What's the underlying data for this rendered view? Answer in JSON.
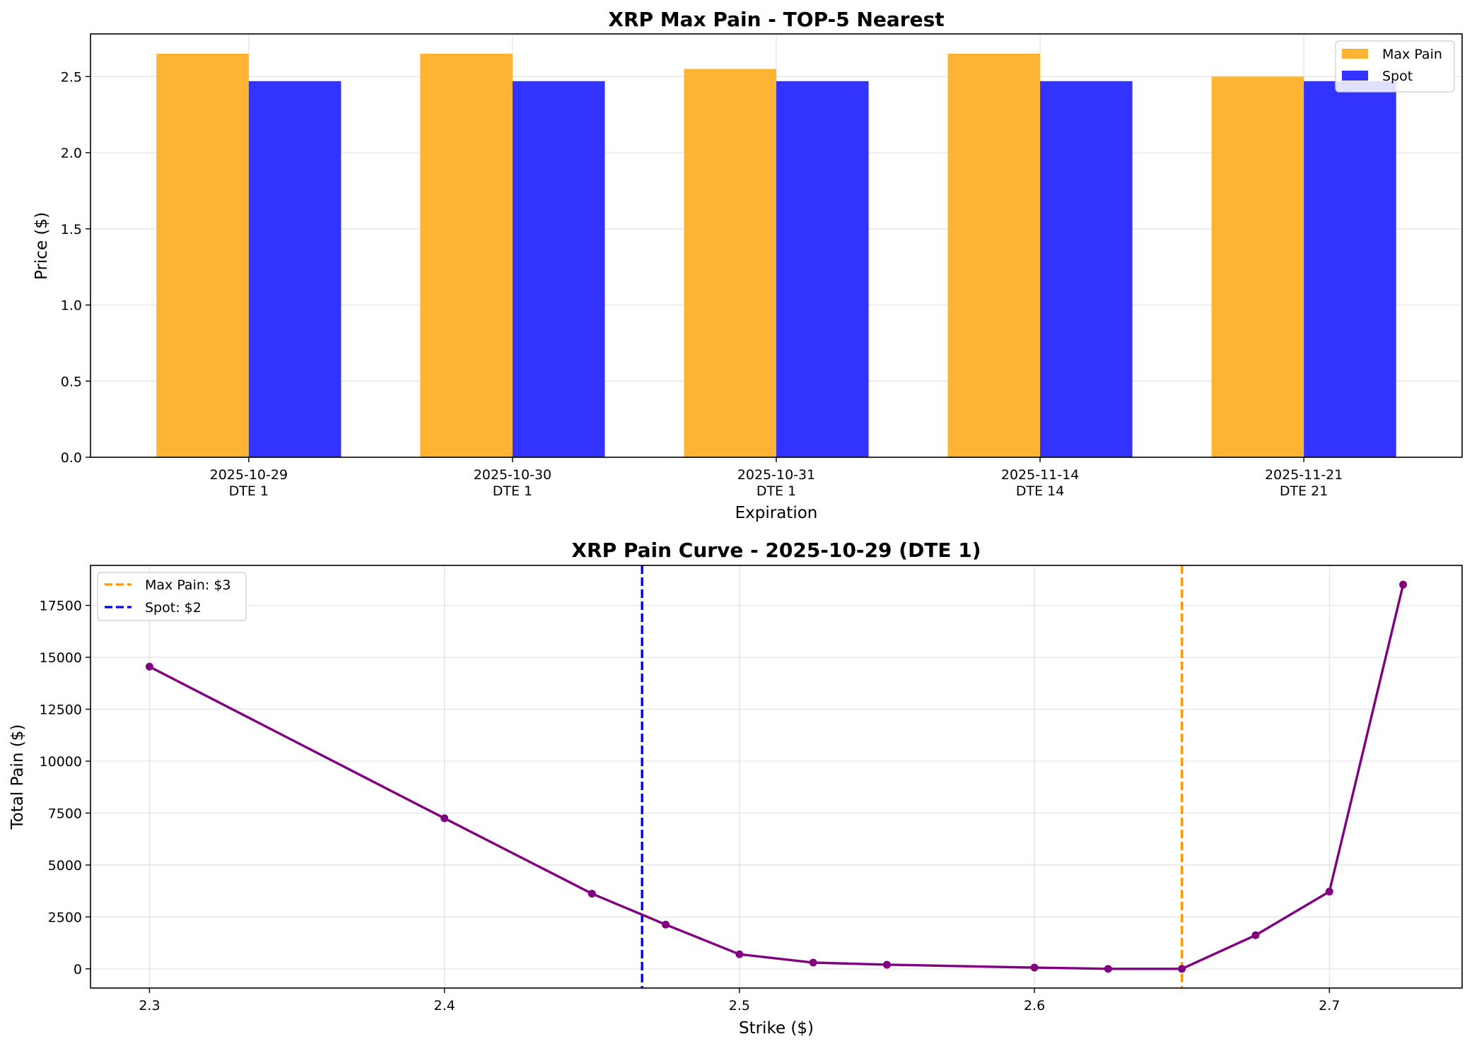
{
  "chart_data": [
    {
      "type": "bar",
      "title": "XRP Max Pain - TOP-5 Nearest",
      "xlabel": "Expiration",
      "ylabel": "Price ($)",
      "categories": [
        {
          "date": "2025-10-29",
          "dte": "DTE 1"
        },
        {
          "date": "2025-10-30",
          "dte": "DTE 1"
        },
        {
          "date": "2025-10-31",
          "dte": "DTE 1"
        },
        {
          "date": "2025-11-14",
          "dte": "DTE 14"
        },
        {
          "date": "2025-11-21",
          "dte": "DTE 21"
        }
      ],
      "series": [
        {
          "name": "Max Pain",
          "color": "#ffb333",
          "values": [
            2.65,
            2.65,
            2.55,
            2.65,
            2.5
          ]
        },
        {
          "name": "Spot",
          "color": "#3333ff",
          "values": [
            2.47,
            2.47,
            2.47,
            2.47,
            2.47
          ]
        }
      ],
      "ylim": [
        0,
        2.78
      ],
      "yticks": [
        0.0,
        0.5,
        1.0,
        1.5,
        2.0,
        2.5
      ],
      "ytick_labels": [
        "0.0",
        "0.5",
        "1.0",
        "1.5",
        "2.0",
        "2.5"
      ],
      "grid": true,
      "legend_position": "top-right"
    },
    {
      "type": "line",
      "title": "XRP Pain Curve - 2025-10-29 (DTE 1)",
      "xlabel": "Strike ($)",
      "ylabel": "Total Pain ($)",
      "series": [
        {
          "name": "",
          "color": "#800080",
          "x": [
            2.3,
            2.4,
            2.45,
            2.475,
            2.5,
            2.525,
            2.55,
            2.6,
            2.625,
            2.65,
            2.675,
            2.7,
            2.725
          ],
          "y": [
            14550,
            7250,
            3620,
            2130,
            700,
            300,
            200,
            60,
            0,
            0,
            1620,
            3720,
            18500
          ]
        }
      ],
      "reference_lines": [
        {
          "label": "Max Pain: $3",
          "x": 2.65,
          "color": "#ff9900"
        },
        {
          "label": "Spot: $2",
          "x": 2.467,
          "color": "#0000ee"
        }
      ],
      "xlim": [
        2.28,
        2.745
      ],
      "ylim": [
        -925,
        19425
      ],
      "xticks": [
        2.3,
        2.4,
        2.5,
        2.6,
        2.7
      ],
      "xtick_labels": [
        "2.3",
        "2.4",
        "2.5",
        "2.6",
        "2.7"
      ],
      "yticks": [
        0,
        2500,
        5000,
        7500,
        10000,
        12500,
        15000,
        17500
      ],
      "ytick_labels": [
        "0",
        "2500",
        "5000",
        "7500",
        "10000",
        "12500",
        "15000",
        "17500"
      ],
      "grid": true,
      "legend_position": "top-left"
    }
  ]
}
